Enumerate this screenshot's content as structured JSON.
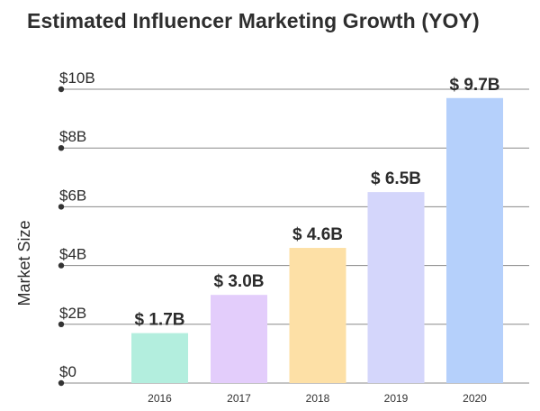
{
  "chart_data": {
    "type": "bar",
    "title": "Estimated Influencer Marketing Growth (YOY)",
    "xlabel": "",
    "ylabel": "Market Size",
    "categories": [
      "2016",
      "2017",
      "2018",
      "2019",
      "2020"
    ],
    "values": [
      1.7,
      3.0,
      4.6,
      6.5,
      9.7
    ],
    "data_labels": [
      "$ 1.7B",
      "$ 3.0B",
      "$ 4.6B",
      "$ 6.5B",
      "$ 9.7B"
    ],
    "colors": [
      "#b3eede",
      "#e3cdfb",
      "#fde0a6",
      "#d4d6fb",
      "#b5d0fb"
    ],
    "ylim": [
      0,
      10
    ],
    "yticks": [
      0,
      2,
      4,
      6,
      8,
      10
    ],
    "ytick_labels": [
      "$0",
      "$2B",
      "$4B",
      "$6B",
      "$8B",
      "$10B"
    ],
    "grid": true,
    "legend": "none"
  }
}
